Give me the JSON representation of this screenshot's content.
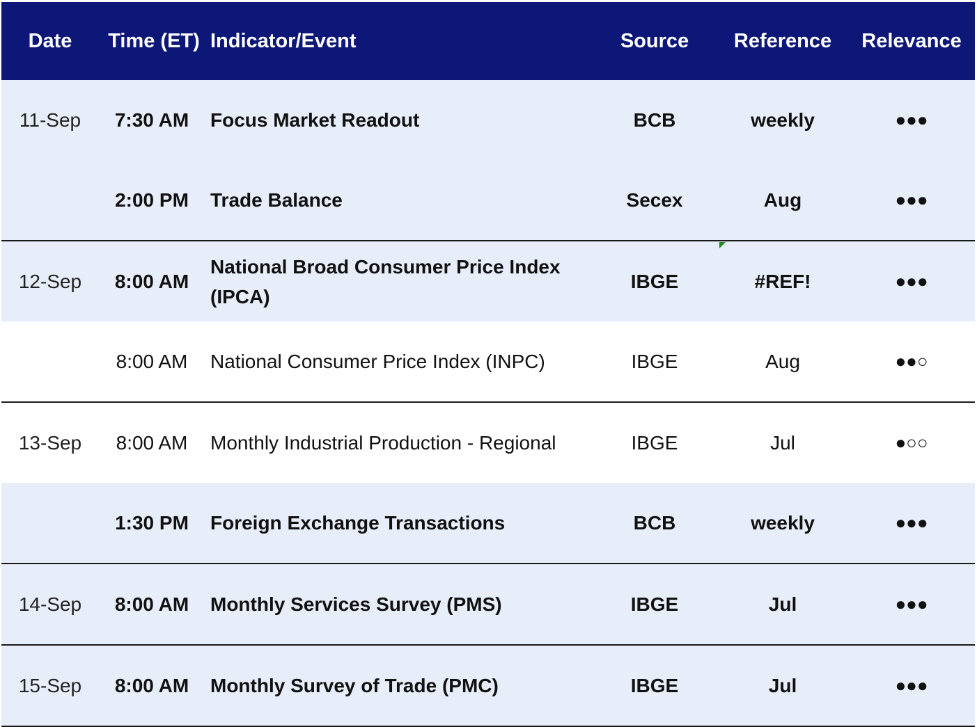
{
  "header": {
    "date": "Date",
    "time": "Time (ET)",
    "indicator": "Indicator/Event",
    "source": "Source",
    "reference": "Reference",
    "relevance": "Relevance"
  },
  "rows": [
    {
      "date": "11-Sep",
      "time": "7:30 AM",
      "indicator": "Focus Market Readout",
      "source": "BCB",
      "reference": "weekly",
      "relevance": "●●●"
    },
    {
      "date": "",
      "time": "2:00 PM",
      "indicator": "Trade Balance",
      "source": "Secex",
      "reference": "Aug",
      "relevance": "●●●"
    },
    {
      "date": "12-Sep",
      "time": "8:00 AM",
      "indicator": "National Broad Consumer Price Index (IPCA)",
      "source": "IBGE",
      "reference": "#REF!",
      "relevance": "●●●"
    },
    {
      "date": "",
      "time": "8:00 AM",
      "indicator": "National Consumer Price Index (INPC)",
      "source": "IBGE",
      "reference": "Aug",
      "relevance": "●●○"
    },
    {
      "date": "13-Sep",
      "time": "8:00 AM",
      "indicator": "Monthly Industrial Production - Regional",
      "source": "IBGE",
      "reference": "Jul",
      "relevance": "●○○"
    },
    {
      "date": "",
      "time": "1:30 PM",
      "indicator": "Foreign Exchange Transactions",
      "source": "BCB",
      "reference": "weekly",
      "relevance": "●●●"
    },
    {
      "date": "14-Sep",
      "time": "8:00 AM",
      "indicator": "Monthly Services Survey (PMS)",
      "source": "IBGE",
      "reference": "Jul",
      "relevance": "●●●"
    },
    {
      "date": "15-Sep",
      "time": "8:00 AM",
      "indicator": "Monthly Survey of Trade (PMC)",
      "source": "IBGE",
      "reference": "Jul",
      "relevance": "●●●"
    }
  ],
  "colors": {
    "header_bg": "#0c1777",
    "row_shaded": "#e8eef9",
    "comment_flag": "#1f8a1f"
  }
}
